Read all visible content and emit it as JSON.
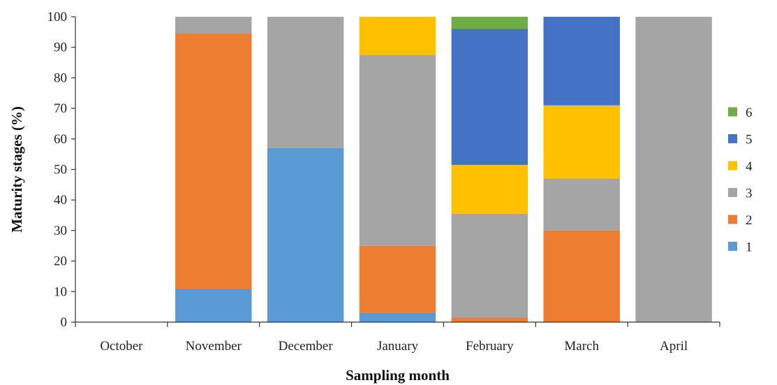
{
  "chart_data": {
    "type": "bar",
    "stacked": true,
    "categories": [
      "October",
      "November",
      "December",
      "January",
      "February",
      "March",
      "April"
    ],
    "series": [
      {
        "name": "1",
        "color": "#5B9BD5",
        "values": [
          0,
          11,
          57,
          3,
          0,
          0,
          0
        ]
      },
      {
        "name": "2",
        "color": "#ED7D31",
        "values": [
          0,
          83.5,
          0,
          22,
          1.5,
          30,
          0
        ]
      },
      {
        "name": "3",
        "color": "#A5A5A5",
        "values": [
          0,
          5.5,
          43,
          62.5,
          34,
          17,
          100
        ]
      },
      {
        "name": "4",
        "color": "#FFC000",
        "values": [
          0,
          0,
          0,
          12.5,
          16,
          24,
          0
        ]
      },
      {
        "name": "5",
        "color": "#4472C4",
        "values": [
          0,
          0,
          0,
          0,
          44.5,
          29,
          0
        ]
      },
      {
        "name": "6",
        "color": "#70AD47",
        "values": [
          0,
          0,
          0,
          0,
          4,
          0,
          0
        ]
      }
    ],
    "xlabel": "Sampling month",
    "ylabel": "Maturity stages (%)",
    "ylim": [
      0,
      100
    ],
    "yticks": [
      0,
      10,
      20,
      30,
      40,
      50,
      60,
      70,
      80,
      90,
      100
    ],
    "grid": false,
    "legend_position": "right"
  }
}
